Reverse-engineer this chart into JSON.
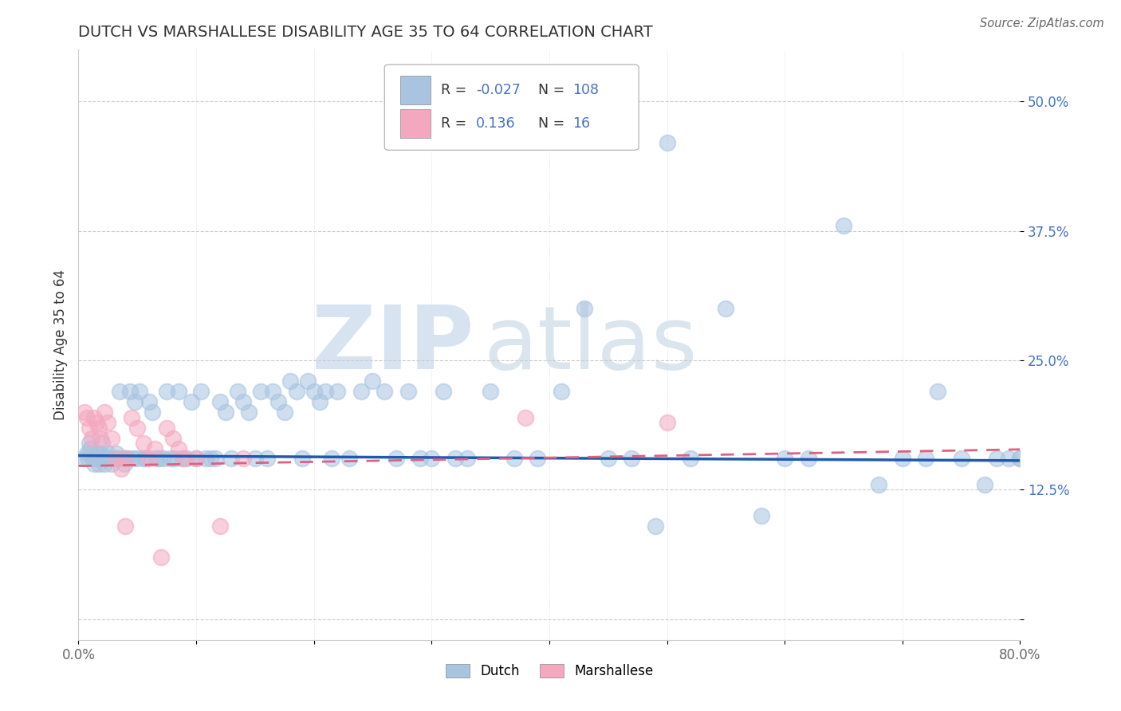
{
  "title": "DUTCH VS MARSHALLESE DISABILITY AGE 35 TO 64 CORRELATION CHART",
  "source": "Source: ZipAtlas.com",
  "ylabel": "Disability Age 35 to 64",
  "xlim": [
    0.0,
    0.8
  ],
  "ylim": [
    -0.02,
    0.55
  ],
  "xticks": [
    0.0,
    0.1,
    0.2,
    0.3,
    0.4,
    0.5,
    0.6,
    0.7,
    0.8
  ],
  "xticklabels": [
    "0.0%",
    "",
    "",
    "",
    "",
    "",
    "",
    "",
    "80.0%"
  ],
  "yticks": [
    0.0,
    0.125,
    0.25,
    0.375,
    0.5
  ],
  "yticklabels": [
    "",
    "12.5%",
    "25.0%",
    "37.5%",
    "50.0%"
  ],
  "dutch_color": "#a8c4e0",
  "marshallese_color": "#f4a8c0",
  "dutch_line_color": "#1f5aad",
  "marshallese_line_color": "#e06080",
  "watermark_zip": "ZIP",
  "watermark_atlas": "atlas",
  "dutch_slope": -0.006,
  "dutch_intercept": 0.158,
  "marsh_slope": 0.02,
  "marsh_intercept": 0.148,
  "dutch_x": [
    0.005,
    0.007,
    0.008,
    0.009,
    0.01,
    0.012,
    0.013,
    0.015,
    0.016,
    0.017,
    0.018,
    0.019,
    0.02,
    0.021,
    0.022,
    0.023,
    0.025,
    0.027,
    0.028,
    0.03,
    0.032,
    0.033,
    0.035,
    0.037,
    0.039,
    0.04,
    0.042,
    0.044,
    0.046,
    0.048,
    0.05,
    0.052,
    0.055,
    0.057,
    0.06,
    0.063,
    0.066,
    0.069,
    0.072,
    0.075,
    0.078,
    0.082,
    0.085,
    0.088,
    0.092,
    0.096,
    0.1,
    0.104,
    0.108,
    0.112,
    0.116,
    0.12,
    0.125,
    0.13,
    0.135,
    0.14,
    0.145,
    0.15,
    0.155,
    0.16,
    0.165,
    0.17,
    0.175,
    0.18,
    0.185,
    0.19,
    0.195,
    0.2,
    0.205,
    0.21,
    0.215,
    0.22,
    0.23,
    0.24,
    0.25,
    0.26,
    0.27,
    0.28,
    0.29,
    0.3,
    0.31,
    0.32,
    0.33,
    0.35,
    0.37,
    0.39,
    0.41,
    0.43,
    0.45,
    0.47,
    0.49,
    0.5,
    0.52,
    0.55,
    0.58,
    0.6,
    0.62,
    0.65,
    0.68,
    0.7,
    0.72,
    0.73,
    0.75,
    0.77,
    0.78,
    0.79,
    0.8,
    0.8
  ],
  "dutch_y": [
    0.155,
    0.16,
    0.155,
    0.17,
    0.165,
    0.155,
    0.15,
    0.16,
    0.155,
    0.15,
    0.155,
    0.16,
    0.17,
    0.155,
    0.15,
    0.155,
    0.16,
    0.155,
    0.15,
    0.155,
    0.16,
    0.155,
    0.22,
    0.155,
    0.15,
    0.155,
    0.155,
    0.22,
    0.155,
    0.21,
    0.155,
    0.22,
    0.155,
    0.155,
    0.21,
    0.2,
    0.155,
    0.155,
    0.155,
    0.22,
    0.155,
    0.155,
    0.22,
    0.155,
    0.155,
    0.21,
    0.155,
    0.22,
    0.155,
    0.155,
    0.155,
    0.21,
    0.2,
    0.155,
    0.22,
    0.21,
    0.2,
    0.155,
    0.22,
    0.155,
    0.22,
    0.21,
    0.2,
    0.23,
    0.22,
    0.155,
    0.23,
    0.22,
    0.21,
    0.22,
    0.155,
    0.22,
    0.155,
    0.22,
    0.23,
    0.22,
    0.155,
    0.22,
    0.155,
    0.155,
    0.22,
    0.155,
    0.155,
    0.22,
    0.155,
    0.155,
    0.22,
    0.3,
    0.155,
    0.155,
    0.09,
    0.46,
    0.155,
    0.3,
    0.1,
    0.155,
    0.155,
    0.38,
    0.13,
    0.155,
    0.155,
    0.22,
    0.155,
    0.13,
    0.155,
    0.155,
    0.155,
    0.155
  ],
  "marsh_x": [
    0.005,
    0.007,
    0.009,
    0.011,
    0.013,
    0.015,
    0.017,
    0.019,
    0.022,
    0.025,
    0.028,
    0.032,
    0.036,
    0.04,
    0.04,
    0.045,
    0.05,
    0.055,
    0.06,
    0.065,
    0.07,
    0.075,
    0.08,
    0.085,
    0.09,
    0.1,
    0.12,
    0.14,
    0.38,
    0.5
  ],
  "marsh_y": [
    0.2,
    0.195,
    0.185,
    0.175,
    0.195,
    0.19,
    0.185,
    0.175,
    0.2,
    0.19,
    0.175,
    0.155,
    0.145,
    0.09,
    0.155,
    0.195,
    0.185,
    0.17,
    0.155,
    0.165,
    0.06,
    0.185,
    0.175,
    0.165,
    0.155,
    0.155,
    0.09,
    0.155,
    0.195,
    0.19
  ]
}
